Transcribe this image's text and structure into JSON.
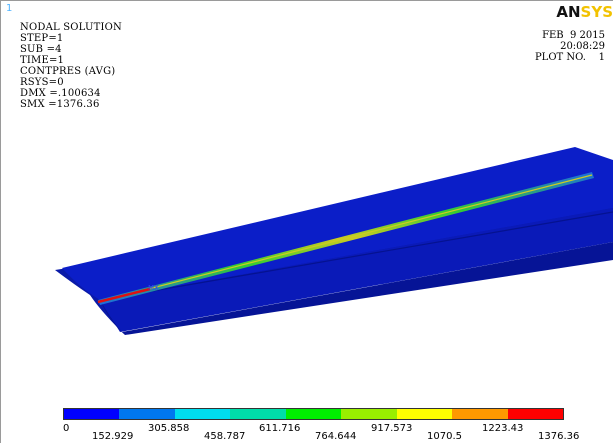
{
  "window_number": "1",
  "info_lines": [
    "NODAL SOLUTION",
    "",
    "STEP=1",
    "SUB =4",
    "TIME=1",
    "CONTPRES (AVG)",
    "RSYS=0",
    "DMX =.100634",
    "SMX =1376.36"
  ],
  "logo": {
    "an": "AN",
    "sys": "SYS"
  },
  "date": "FEB  9 2015",
  "time": "20:08:29",
  "plot_no": "PLOT NO.    1",
  "legend": {
    "colors": [
      "#0000ff",
      "#0077ee",
      "#00ddee",
      "#00ddaa",
      "#00ee00",
      "#99ee00",
      "#ffff00",
      "#ff9900",
      "#ff0000"
    ],
    "values": [
      "0",
      "152.929",
      "305.858",
      "458.787",
      "611.716",
      "764.644",
      "917.573",
      "1070.5",
      "1223.43",
      "1376.36"
    ]
  },
  "colors": {
    "surface": "#0b1ec8",
    "surface_dark": "#051290",
    "hot_center": "#e01010",
    "green_band": "#33cc33",
    "yellow_band": "#cccc22"
  }
}
